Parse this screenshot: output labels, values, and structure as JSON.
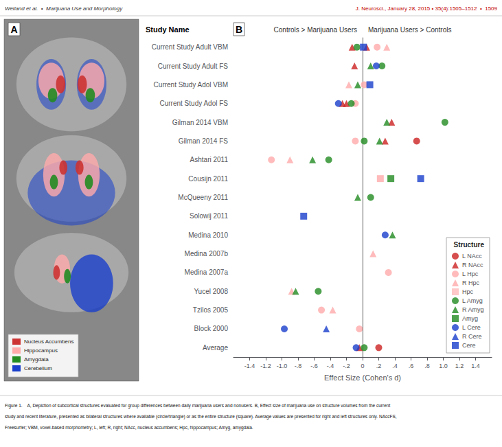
{
  "chart_data": {
    "type": "scatter",
    "xlabel": "Effect Size (Cohen's d)",
    "y_axis_title": "Study Name",
    "direction_labels": [
      "Controls > Marijuana Users",
      "Marijuana Users > Controls"
    ],
    "panel_labels": [
      "A",
      "B"
    ],
    "header_left": "Weiland et al.  •  Marijuana Use and Morphology",
    "header_right": {
      "text": "J. Neurosci., January 28, 2015 • 35(4):1505–1512  •  1509",
      "color": "#c00000"
    },
    "caption": [
      "Figure 1.    A, Depiction of subcortical structures evaluated for group differences between daily marijuana users and nonusers. B, Effect size of marijuana use on structure volumes from the current",
      "study and recent literature, presented as bilateral structures where available (circle/triangle) or as the entire structure (square). Average values are presented for right and left structures only. NAccFS,",
      "Freesurfer; VBM, voxel-based morphometry; L, left; R, right; NAcc, nucleus accumbens; Hpc, hippocampus; Amyg, amygdala."
    ],
    "inset_legend": [
      {
        "label": "Nucleus Accumbens",
        "color": "#cc3333"
      },
      {
        "label": "Hippocampus",
        "color": "#ffaaaa"
      },
      {
        "label": "Amygdala",
        "color": "#228B22"
      },
      {
        "label": "Cerebellum",
        "color": "#1a3fcc"
      }
    ],
    "categories": [
      "Current Study Adult VBM",
      "Current Study Adult FS",
      "Current Study Adol VBM",
      "Current Study Adol FS",
      "Gilman 2014 VBM",
      "Gilman 2014 FS",
      "Ashtari 2011",
      "Cousijn 2011",
      "McQueeny 2011",
      "Solowij 2011",
      "Medina 2010",
      "Medina 2007b",
      "Medina 2007a",
      "Yucel 2008",
      "Tzilos 2005",
      "Block 2000",
      "Average"
    ],
    "xlim": [
      -1.6,
      1.6
    ],
    "xticks": [
      -1.4,
      -1.2,
      {
        "value": -1.0,
        "label": "-1.0"
      },
      {
        "value": -0.8,
        "label": "-.8"
      },
      {
        "value": -0.6,
        "label": "-.6"
      },
      {
        "value": -0.4,
        "label": "-.4"
      },
      {
        "value": -0.2,
        "label": "-.2"
      },
      0,
      {
        "value": 0.2,
        "label": ".2"
      },
      {
        "value": 0.4,
        "label": ".4"
      },
      {
        "value": 0.6,
        "label": ".6"
      },
      {
        "value": 0.8,
        "label": ".8"
      },
      {
        "value": 1.0,
        "label": "1.0"
      },
      1.2,
      1.4
    ],
    "grid": false,
    "legend": "lower right",
    "legend_title": "Structure",
    "reference_line": {
      "x": 0
    },
    "series": [
      {
        "name": "L NAcc",
        "color": "#cc2222",
        "marker": "circle",
        "x": [
          0.67,
          0.2
        ],
        "y": [
          "Gilman 2014 FS",
          "Average"
        ]
      },
      {
        "name": "R NAcc",
        "color": "#cc2222",
        "marker": "triangle",
        "x": [
          -0.13,
          0.05,
          -0.1,
          -0.25,
          -0.2,
          0.36,
          0.28,
          -0.04
        ],
        "y": [
          "Current Study Adult VBM",
          "Current Study Adult VBM",
          "Current Study Adult FS",
          "Current Study Adol FS",
          "Current Study Adol FS",
          "Gilman 2014 VBM",
          "Gilman 2014 FS",
          "Average"
        ]
      },
      {
        "name": "L Hpc",
        "color": "#ffaaaa",
        "marker": "circle",
        "x": [
          0.18,
          0.02,
          -0.09,
          -0.09,
          -1.13,
          0.32,
          -0.51,
          -0.04
        ],
        "y": [
          "Current Study Adult VBM",
          "Current Study Adol VBM",
          "Current Study Adol FS",
          "Gilman 2014 FS",
          "Ashtari 2011",
          "Medina 2007a",
          "Tzilos 2005",
          "Block 2000"
        ]
      },
      {
        "name": "R Hpc",
        "color": "#ffaaaa",
        "marker": "triangle",
        "x": [
          0.3,
          -0.17,
          -0.9,
          0.13,
          -0.88,
          -0.37
        ],
        "y": [
          "Current Study Adult VBM",
          "Current Study Adol VBM",
          "Ashtari 2011",
          "Medina 2007b",
          "Yucel 2008",
          "Tzilos 2005"
        ]
      },
      {
        "name": "Hpc",
        "color": "#ffbbbb",
        "marker": "square",
        "colors": [
          "#ffaaaa"
        ],
        "x": [
          0.22
        ],
        "y": [
          "Cousijn 2011"
        ]
      },
      {
        "name": "L Amyg",
        "color": "#228B22",
        "marker": "circle",
        "x": [
          -0.07,
          0.24,
          -0.14,
          1.02,
          0.02,
          -0.42,
          0.1,
          -0.55,
          0.02
        ],
        "y": [
          "Current Study Adult VBM",
          "Current Study Adult FS",
          "Current Study Adol FS",
          "Gilman 2014 VBM",
          "Gilman 2014 FS",
          "Ashtari 2011",
          "McQueeny 2011",
          "Yucel 2008",
          "Average"
        ]
      },
      {
        "name": "R Amyg",
        "color": "#228B22",
        "marker": "triangle",
        "x": [
          0.1,
          -0.06,
          0.3,
          0.21,
          -0.62,
          -0.06,
          0.37,
          -0.83
        ],
        "y": [
          "Current Study Adult FS",
          "Current Study Adol VBM",
          "Gilman 2014 VBM",
          "Gilman 2014 FS",
          "Ashtari 2011",
          "McQueeny 2011",
          "Medina 2010",
          "Yucel 2008"
        ]
      },
      {
        "name": "Amyg",
        "color": "#228B22",
        "marker": "square",
        "x": [
          0.35
        ],
        "y": [
          "Cousijn 2011"
        ]
      },
      {
        "name": "L Cere",
        "color": "#1a3fcc",
        "marker": "circle",
        "x": [
          0.17,
          -0.3,
          0.28,
          -0.97,
          -0.08
        ],
        "y": [
          "Current Study Adult FS",
          "Current Study Adol FS",
          "Medina 2010",
          "Block 2000",
          "Average"
        ]
      },
      {
        "name": "R Cere",
        "color": "#1a3fcc",
        "marker": "triangle",
        "x": [
          -0.45
        ],
        "y": [
          "Block 2000"
        ]
      },
      {
        "name": "Cere",
        "color": "#1a3fcc",
        "marker": "square",
        "x": [
          0.01,
          0.09,
          0.72,
          -0.73
        ],
        "y": [
          "Current Study Adult VBM",
          "Current Study Adol VBM",
          "Cousijn 2011",
          "Solowij 2011"
        ]
      }
    ]
  }
}
